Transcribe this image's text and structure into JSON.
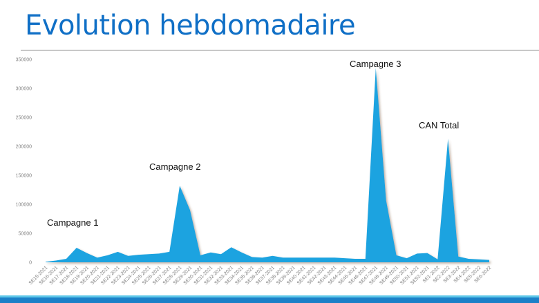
{
  "slide": {
    "title": "Evolution hebdomadaire",
    "colors": {
      "title": "#0f6fc6",
      "area": "#1aa3e0",
      "band_light": "#5ec8e8",
      "band": "#1b80c8"
    }
  },
  "chart_data": {
    "type": "area",
    "title": "Evolution hebdomadaire",
    "xlabel": "",
    "ylabel": "",
    "ylim": [
      0,
      350000
    ],
    "yticks": [
      0,
      50000,
      100000,
      150000,
      200000,
      250000,
      300000,
      350000
    ],
    "ytick_labels": [
      "0",
      "50000",
      "100000",
      "150000",
      "200000",
      "250000",
      "300000",
      "350000"
    ],
    "grid": false,
    "legend": null,
    "categories": [
      "SE15-2021",
      "SE16-2021",
      "SE17-2021",
      "SE18-2021",
      "SE19-2021",
      "SE20-2021",
      "SE21-2021",
      "SE22-2021",
      "SE23-2021",
      "SE24-2021",
      "SE25-2021",
      "SE26-2021",
      "SE27-2021",
      "SE28-2021",
      "SE29-2021",
      "SE30-2021",
      "SE31-2021",
      "SE32-2021",
      "SE33-2021",
      "SE34-2021",
      "SE35-2021",
      "SE36-2021",
      "SE37-2021",
      "SE38-2021",
      "SE39-2021",
      "SE40-2021",
      "SE41-2021",
      "SE42-2021",
      "SE43-2021",
      "SE44-2021",
      "SE45-2021",
      "SE46-2021",
      "SE47-2021",
      "SE48-2021",
      "SE49-2021",
      "SE50-2021",
      "SE51-2021",
      "SE52-2021",
      "SE1-2022",
      "SE2-2022",
      "SE3-2022",
      "SE4-2022",
      "SE5-2022",
      "SE6-2022"
    ],
    "series": [
      {
        "name": "Hebdomadaire",
        "values": [
          1000,
          3000,
          6000,
          25000,
          16000,
          8000,
          12000,
          18000,
          11000,
          13000,
          14000,
          15000,
          18000,
          132000,
          90000,
          12000,
          17000,
          14000,
          26000,
          17000,
          9000,
          8000,
          11000,
          8000,
          8000,
          8000,
          8000,
          8000,
          8000,
          7000,
          6000,
          6000,
          335000,
          107000,
          12000,
          7000,
          15000,
          16000,
          5000,
          213000,
          10000,
          6000,
          5000,
          4000
        ]
      }
    ],
    "annotations": [
      {
        "text": "Campagne 1",
        "category": "SE18-2021"
      },
      {
        "text": "Campagne 2",
        "category": "SE28-2021"
      },
      {
        "text": "Campagne 3",
        "category": "SE47-2021"
      },
      {
        "text": "CAN Total",
        "category": "SE2-2022"
      }
    ]
  }
}
